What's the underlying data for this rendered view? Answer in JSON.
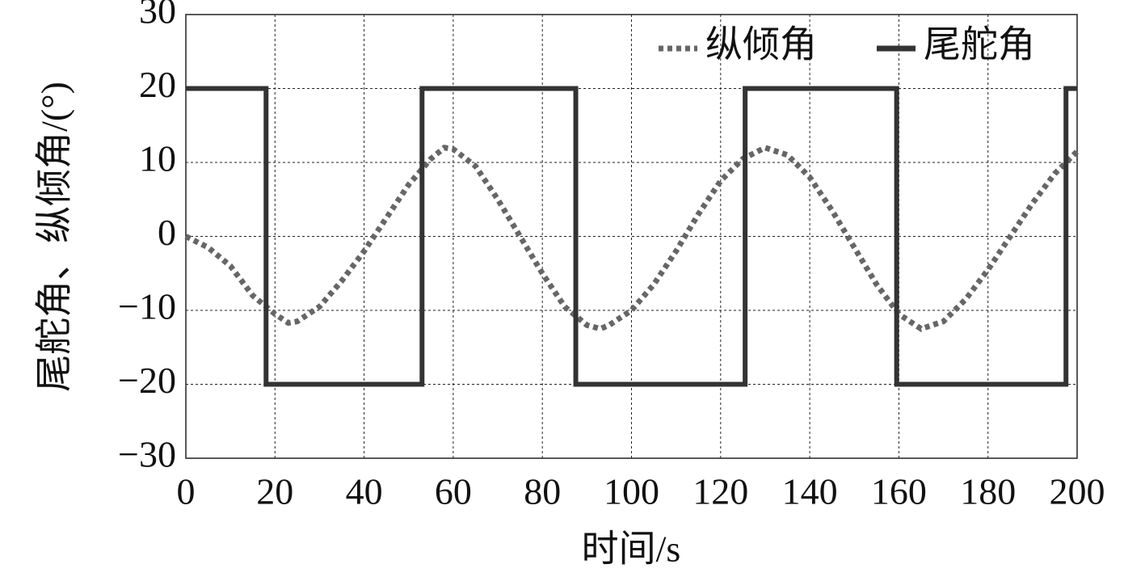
{
  "chart_data": {
    "type": "line",
    "xlabel": "时间/s",
    "ylabel": "尾舵角、纵倾角/(°)",
    "xlim": [
      0,
      200
    ],
    "xticks": [
      0,
      20,
      40,
      60,
      80,
      100,
      120,
      140,
      160,
      180,
      200
    ],
    "ylim": [
      -30,
      30
    ],
    "yticks": [
      {
        "value": -30,
        "label": "−30"
      },
      {
        "value": -20,
        "label": "−20"
      },
      {
        "value": -10,
        "label": "−10"
      },
      0,
      10,
      20,
      30
    ],
    "grid": true,
    "legend": "upper-right",
    "series": [
      {
        "name": "纵倾角",
        "color": "#666666",
        "style": "dotted",
        "x": [
          0,
          5,
          10,
          15,
          20,
          23,
          25,
          30,
          35,
          40,
          45,
          50,
          55,
          58,
          60,
          65,
          70,
          75,
          80,
          85,
          90,
          93,
          95,
          100,
          105,
          110,
          115,
          120,
          125,
          130,
          135,
          140,
          145,
          150,
          155,
          160,
          165,
          170,
          175,
          180,
          185,
          190,
          195,
          200
        ],
        "values": [
          0,
          -1.5,
          -4,
          -8,
          -10.5,
          -11.7,
          -11.5,
          -9.5,
          -6,
          -2,
          2.5,
          7,
          10.5,
          12,
          11.8,
          9.5,
          5,
          0,
          -5,
          -9.5,
          -12,
          -12.5,
          -12,
          -10,
          -6.5,
          -2,
          3,
          7.5,
          10.5,
          12,
          11,
          8,
          3.5,
          -1.5,
          -6.5,
          -10.5,
          -12.5,
          -11.5,
          -8.5,
          -4.5,
          0,
          4.5,
          8.5,
          11.5
        ]
      },
      {
        "name": "尾舵角",
        "color": "#333333",
        "style": "solid",
        "x": [
          0,
          18,
          18,
          53,
          53,
          87.5,
          87.5,
          125.5,
          125.5,
          159.5,
          159.5,
          197.5,
          197.5,
          200
        ],
        "values": [
          20,
          20,
          -20,
          -20,
          20,
          20,
          -20,
          -20,
          20,
          20,
          -20,
          -20,
          20,
          20
        ]
      }
    ]
  }
}
